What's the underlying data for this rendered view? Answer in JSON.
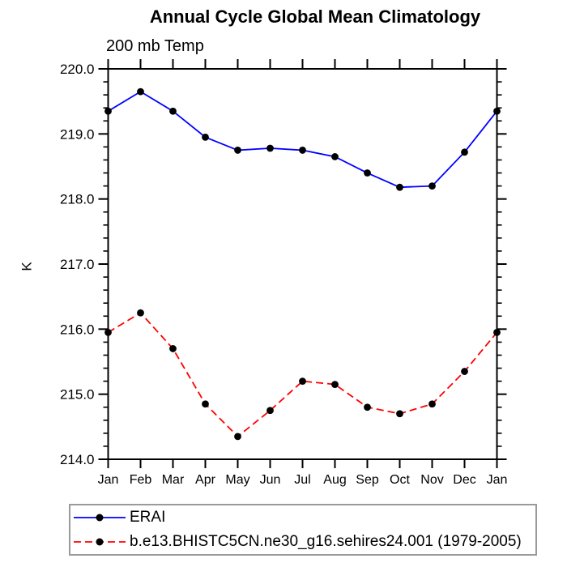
{
  "chart_data": {
    "type": "line",
    "title": "Annual Cycle Global Mean Climatology",
    "subtitle": "200 mb Temp",
    "ylabel": "K",
    "xlabel": "",
    "x_categories": [
      "Jan",
      "Feb",
      "Mar",
      "Apr",
      "May",
      "Jun",
      "Jul",
      "Aug",
      "Sep",
      "Oct",
      "Nov",
      "Dec",
      "Jan"
    ],
    "ylim": [
      214.0,
      220.0
    ],
    "y_major_ticks": [
      214.0,
      215.0,
      216.0,
      217.0,
      218.0,
      219.0,
      220.0
    ],
    "y_tick_labels": [
      "214.0",
      "215.0",
      "216.0",
      "217.0",
      "218.0",
      "219.0",
      "220.0"
    ],
    "y_minor_step": 0.2,
    "grid": false,
    "frame_color": "#000000",
    "marker_color": "#000000",
    "legend_position": "bottom-left",
    "series": [
      {
        "name": "ERAI",
        "color": "#0000ff",
        "line_style": "solid",
        "marker": "circle",
        "values": [
          219.35,
          219.65,
          219.35,
          218.95,
          218.75,
          218.78,
          218.75,
          218.65,
          218.4,
          218.18,
          218.2,
          218.72,
          219.35
        ]
      },
      {
        "name": "b.e13.BHISTC5CN.ne30_g16.sehires24.001 (1979-2005)",
        "color": "#ff0000",
        "line_style": "dashed",
        "marker": "circle",
        "values": [
          215.95,
          216.25,
          215.7,
          214.85,
          214.35,
          214.75,
          215.2,
          215.15,
          214.8,
          214.7,
          214.85,
          215.35,
          215.95
        ]
      }
    ]
  }
}
